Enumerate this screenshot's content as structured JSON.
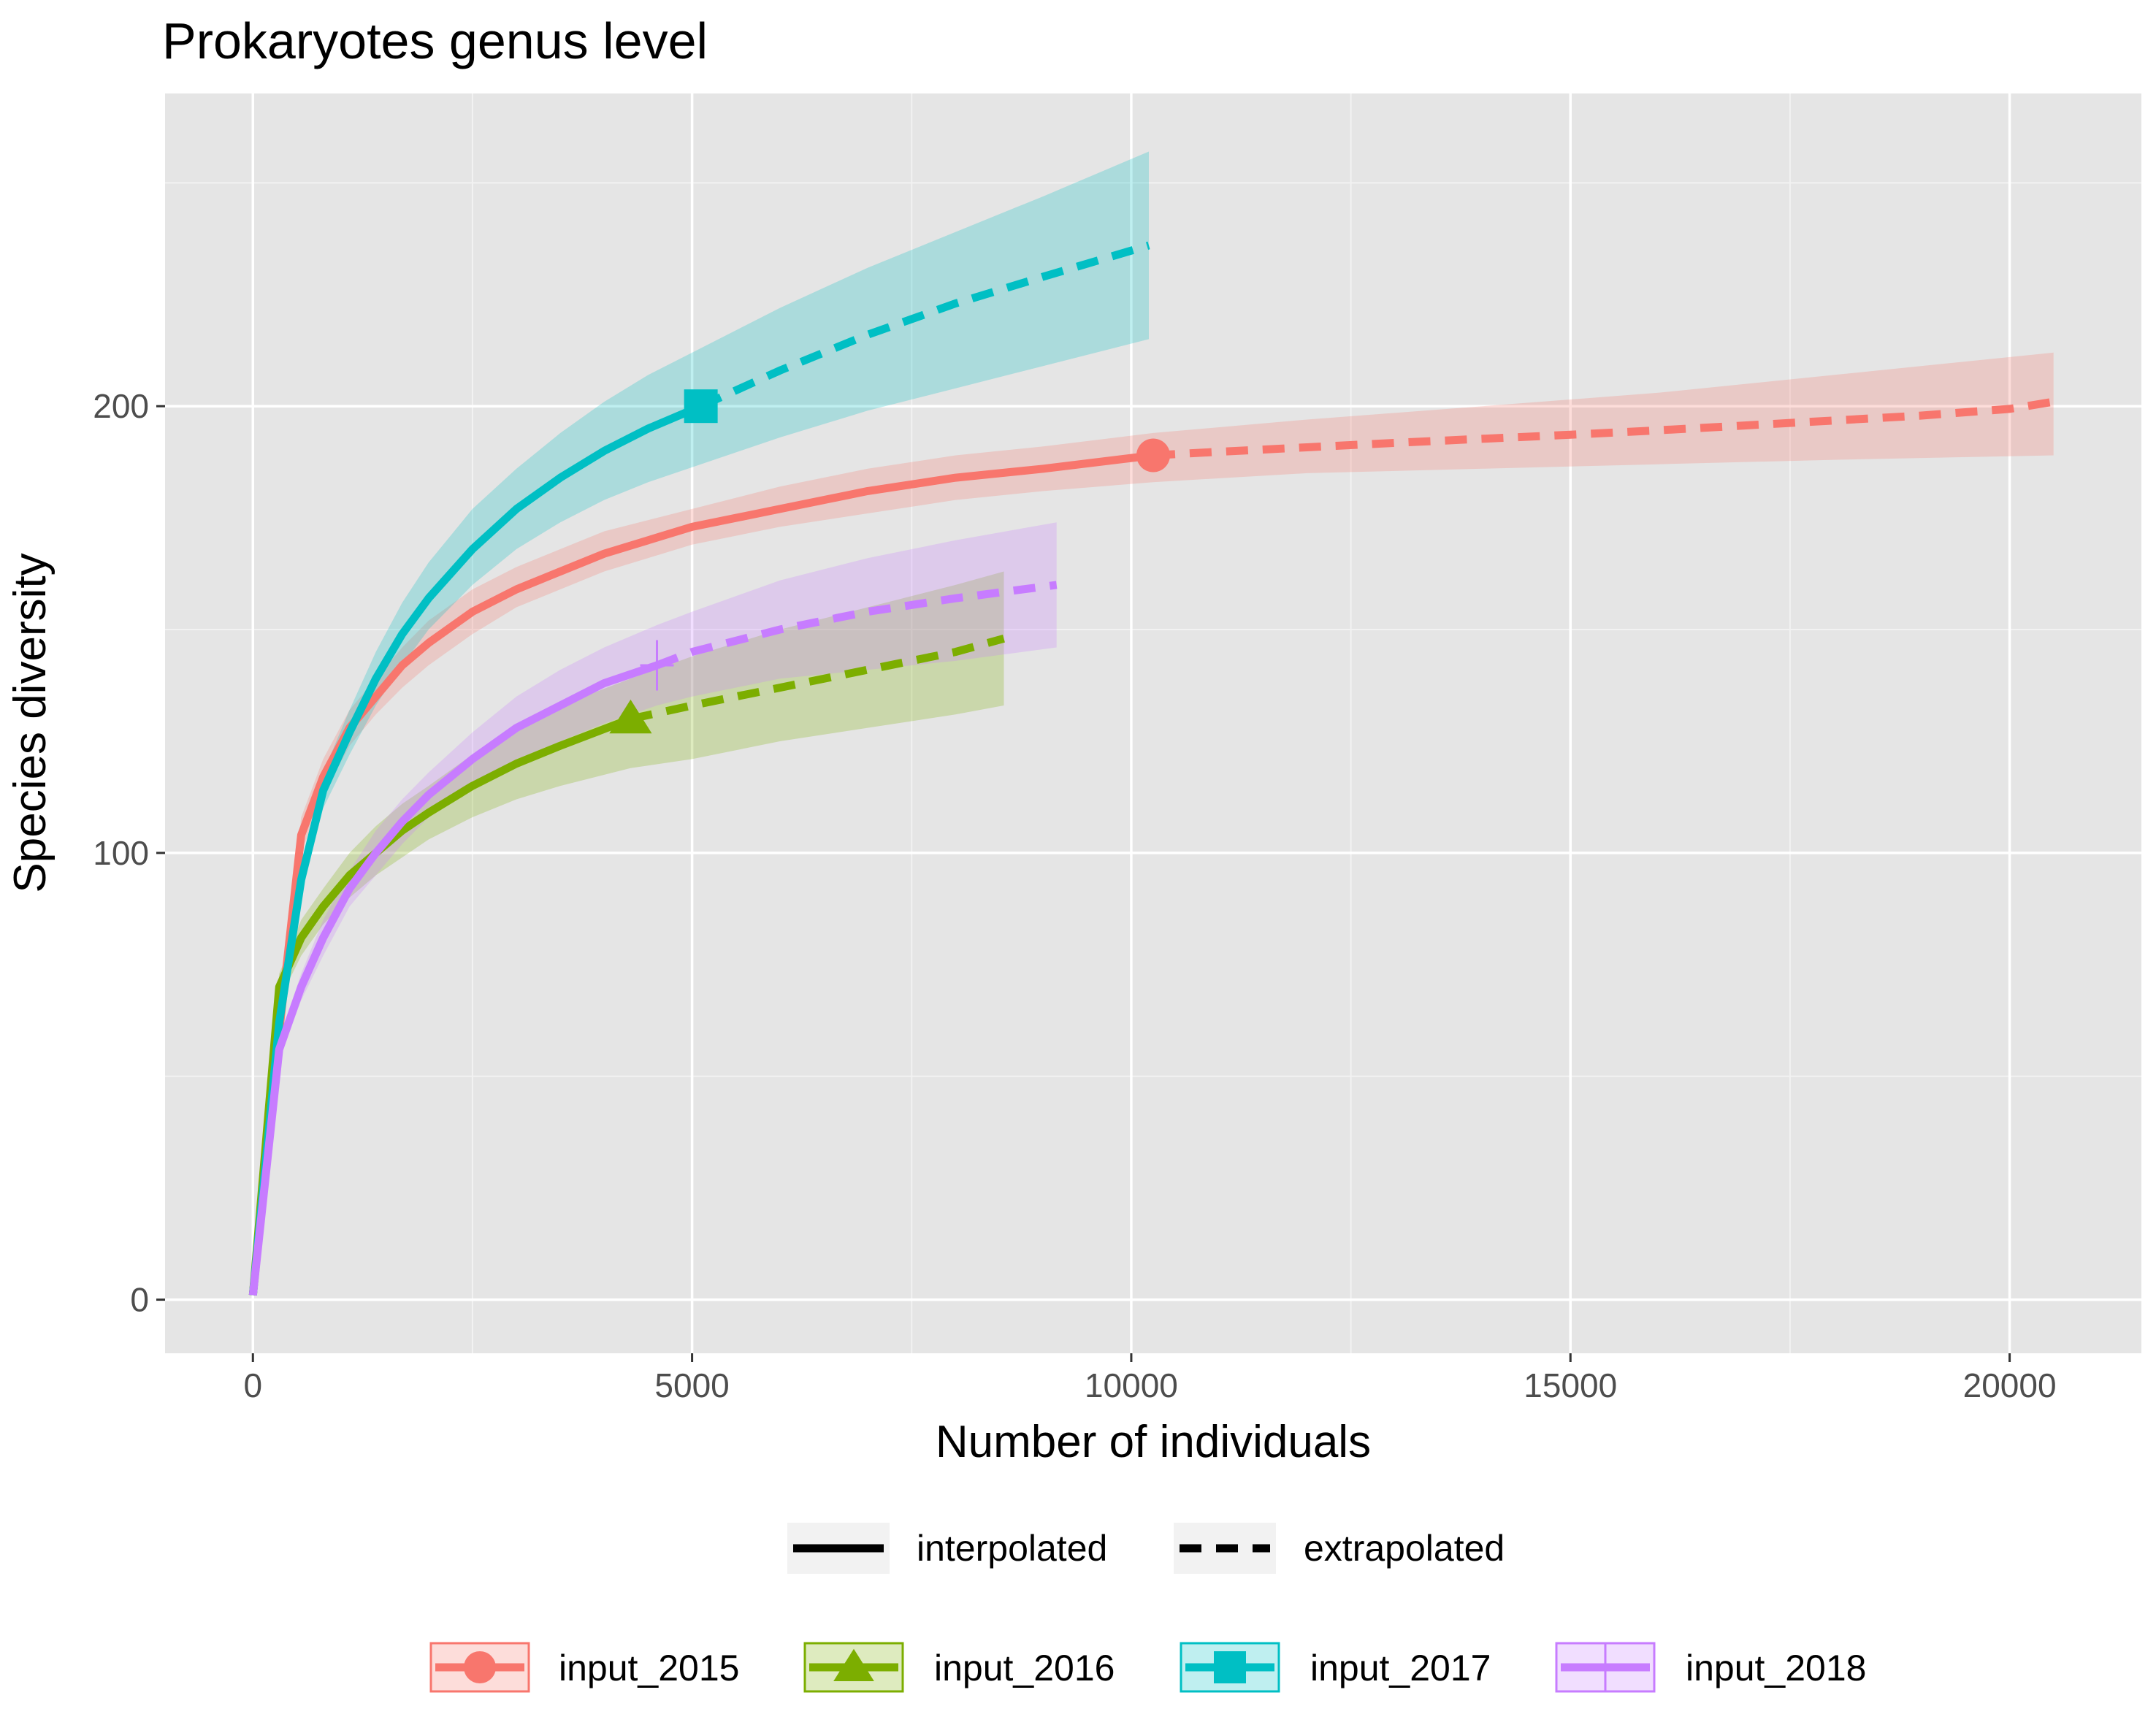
{
  "chart_data": {
    "type": "line",
    "title": "Prokaryotes genus level",
    "xlabel": "Number of individuals",
    "ylabel": "Species diversity",
    "xlim": [
      -1000,
      21500
    ],
    "ylim": [
      -12,
      270
    ],
    "xticks": [
      0,
      5000,
      10000,
      15000,
      20000
    ],
    "xtick_labels": [
      "0",
      "5000",
      "10000",
      "15000",
      "20000"
    ],
    "yticks": [
      0,
      100,
      200
    ],
    "ytick_labels": [
      "0",
      "100",
      "200"
    ],
    "grid": true,
    "legend_position": "bottom",
    "linetype_legend": [
      {
        "label": "interpolated",
        "dash": "solid"
      },
      {
        "label": "extrapolated",
        "dash": "dashed"
      }
    ],
    "series": [
      {
        "name": "input_2015",
        "color": "#F8766D",
        "marker": "circle",
        "observed": {
          "x": 10250,
          "y": 189
        },
        "interpolated": {
          "x": [
            0,
            300,
            550,
            800,
            1100,
            1400,
            1700,
            2000,
            2500,
            3000,
            3500,
            4000,
            5000,
            6000,
            7000,
            8000,
            9000,
            10250
          ],
          "y": [
            1,
            60,
            104,
            117,
            128,
            135,
            142,
            147,
            154,
            159,
            163,
            167,
            173,
            177,
            181,
            184,
            186,
            189
          ]
        },
        "extrapolated": {
          "x": [
            10250,
            11000,
            12000,
            13000,
            14000,
            15000,
            16000,
            17000,
            18000,
            19000,
            20000,
            20500
          ],
          "y": [
            189,
            189.8,
            190.8,
            191.8,
            192.7,
            193.6,
            194.6,
            195.7,
            196.8,
            197.9,
            199.4,
            201
          ]
        },
        "ci_lower": {
          "x": [
            0,
            300,
            550,
            800,
            1100,
            1400,
            1700,
            2000,
            2500,
            3000,
            3500,
            4000,
            5000,
            6000,
            7000,
            8000,
            9000,
            10250,
            12000,
            14000,
            16000,
            18000,
            20500
          ],
          "y": [
            1,
            58,
            100,
            113,
            124,
            131,
            137,
            142,
            149,
            155,
            159,
            163,
            169,
            173,
            176,
            179,
            181,
            183,
            185,
            186,
            187,
            188,
            189
          ]
        },
        "ci_upper": {
          "x": [
            0,
            300,
            550,
            800,
            1100,
            1400,
            1700,
            2000,
            2500,
            3000,
            3500,
            4000,
            5000,
            6000,
            7000,
            8000,
            9000,
            10250,
            12000,
            14000,
            16000,
            18000,
            20500
          ],
          "y": [
            1,
            62,
            108,
            121,
            132,
            139,
            146,
            152,
            159,
            164,
            168,
            172,
            177,
            182,
            186,
            189,
            191,
            194,
            197,
            200,
            203,
            207,
            212
          ]
        }
      },
      {
        "name": "input_2016",
        "color": "#7CAE00",
        "marker": "triangle",
        "observed": {
          "x": 4300,
          "y": 130
        },
        "interpolated": {
          "x": [
            0,
            300,
            550,
            800,
            1100,
            1400,
            1700,
            2000,
            2500,
            3000,
            3500,
            4300
          ],
          "y": [
            1,
            70,
            81,
            88,
            95,
            100,
            105,
            109,
            115,
            120,
            124,
            130
          ]
        },
        "extrapolated": {
          "x": [
            4300,
            5000,
            6000,
            7000,
            8000,
            8550
          ],
          "y": [
            130,
            133,
            137,
            141,
            145,
            148
          ]
        },
        "ci_lower": {
          "x": [
            0,
            300,
            550,
            800,
            1100,
            1400,
            1700,
            2000,
            2500,
            3000,
            3500,
            4300,
            5000,
            6000,
            7000,
            8000,
            8550
          ],
          "y": [
            1,
            67,
            77,
            84,
            90,
            95,
            99,
            103,
            108,
            112,
            115,
            119,
            121,
            125,
            128,
            131,
            133
          ]
        },
        "ci_upper": {
          "x": [
            0,
            300,
            550,
            800,
            1100,
            1400,
            1700,
            2000,
            2500,
            3000,
            3500,
            4300,
            5000,
            6000,
            7000,
            8000,
            8550
          ],
          "y": [
            1,
            73,
            85,
            92,
            100,
            106,
            111,
            115,
            122,
            128,
            133,
            139,
            144,
            150,
            155,
            160,
            163
          ]
        }
      },
      {
        "name": "input_2017",
        "color": "#00BFC4",
        "marker": "square",
        "observed": {
          "x": 5100,
          "y": 200
        },
        "interpolated": {
          "x": [
            0,
            300,
            550,
            800,
            1100,
            1400,
            1700,
            2000,
            2500,
            3000,
            3500,
            4000,
            4500,
            5100
          ],
          "y": [
            1,
            62,
            94,
            114,
            127,
            139,
            149,
            157,
            168,
            177,
            184,
            190,
            195,
            200
          ]
        },
        "extrapolated": {
          "x": [
            5100,
            6000,
            7000,
            8000,
            9000,
            10200
          ],
          "y": [
            200,
            208,
            216,
            223,
            229,
            236
          ]
        },
        "ci_lower": {
          "x": [
            0,
            300,
            550,
            800,
            1100,
            1400,
            1700,
            2000,
            2500,
            3000,
            3500,
            4000,
            4500,
            5100,
            6000,
            7000,
            8000,
            9000,
            10200
          ],
          "y": [
            1,
            60,
            91,
            110,
            122,
            133,
            142,
            150,
            160,
            168,
            174,
            179,
            183,
            187,
            193,
            199,
            204,
            209,
            215
          ]
        },
        "ci_upper": {
          "x": [
            0,
            300,
            550,
            800,
            1100,
            1400,
            1700,
            2000,
            2500,
            3000,
            3500,
            4000,
            4500,
            5100,
            6000,
            7000,
            8000,
            9000,
            10200
          ],
          "y": [
            1,
            64,
            97,
            118,
            132,
            145,
            156,
            165,
            177,
            186,
            194,
            201,
            207,
            213,
            222,
            231,
            239,
            247,
            257
          ]
        }
      },
      {
        "name": "input_2018",
        "color": "#C77CFF",
        "marker": "cross",
        "observed": {
          "x": 4600,
          "y": 142
        },
        "interpolated": {
          "x": [
            0,
            300,
            550,
            800,
            1100,
            1400,
            1700,
            2000,
            2500,
            3000,
            3500,
            4000,
            4600
          ],
          "y": [
            1,
            56,
            70,
            81,
            92,
            100,
            107,
            113,
            121,
            128,
            133,
            138,
            142
          ]
        },
        "extrapolated": {
          "x": [
            4600,
            5000,
            6000,
            7000,
            8000,
            9150
          ],
          "y": [
            142,
            145,
            150,
            154,
            157,
            160
          ]
        },
        "ci_lower": {
          "x": [
            0,
            300,
            550,
            800,
            1100,
            1400,
            1700,
            2000,
            2500,
            3000,
            3500,
            4000,
            4600,
            5000,
            6000,
            7000,
            8000,
            9150
          ],
          "y": [
            1,
            54,
            67,
            77,
            88,
            95,
            102,
            108,
            115,
            121,
            125,
            129,
            133,
            135,
            139,
            141,
            143,
            146
          ]
        },
        "ci_upper": {
          "x": [
            0,
            300,
            550,
            800,
            1100,
            1400,
            1700,
            2000,
            2500,
            3000,
            3500,
            4000,
            4600,
            5000,
            6000,
            7000,
            8000,
            9150
          ],
          "y": [
            1,
            58,
            73,
            85,
            96,
            105,
            112,
            118,
            127,
            135,
            141,
            146,
            151,
            154,
            161,
            166,
            170,
            174
          ]
        }
      }
    ]
  }
}
